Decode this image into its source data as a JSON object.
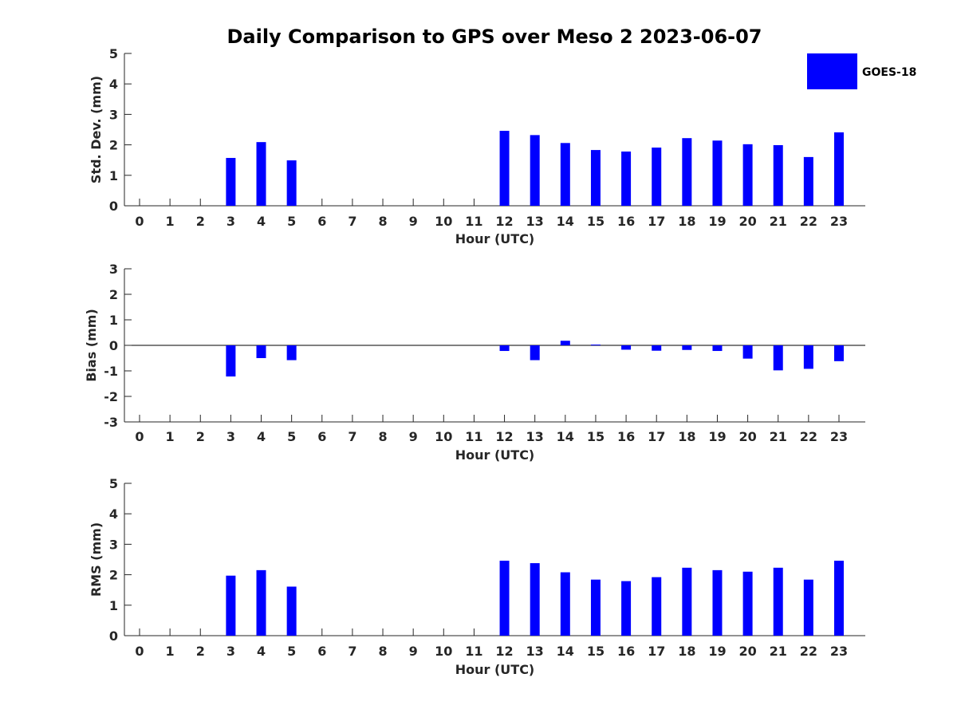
{
  "title": "Daily Comparison to GPS over Meso 2 2023-06-07",
  "colors": {
    "bar": "#0000ff",
    "axis": "#262626",
    "zero_line": "#000000"
  },
  "legend": {
    "label": "GOES-18",
    "position": "top-right"
  },
  "chart_data": [
    {
      "type": "bar",
      "id": "std",
      "title": "Daily Comparison to GPS over Meso 2 2023-06-07",
      "xlabel": "Hour (UTC)",
      "ylabel": "Std. Dev. (mm)",
      "ylim": [
        0,
        5
      ],
      "yticks": [
        "0",
        "1",
        "2",
        "3",
        "4",
        "5"
      ],
      "categories": [
        "0",
        "1",
        "2",
        "3",
        "4",
        "5",
        "6",
        "7",
        "8",
        "9",
        "10",
        "11",
        "12",
        "13",
        "14",
        "15",
        "16",
        "17",
        "18",
        "19",
        "20",
        "21",
        "22",
        "23"
      ],
      "series": [
        {
          "name": "GOES-18",
          "values": [
            null,
            null,
            null,
            1.57,
            2.09,
            1.49,
            null,
            null,
            null,
            null,
            null,
            null,
            2.46,
            2.32,
            2.06,
            1.83,
            1.78,
            1.91,
            2.22,
            2.14,
            2.02,
            1.99,
            1.6,
            2.41
          ]
        }
      ]
    },
    {
      "type": "bar",
      "id": "bias",
      "xlabel": "Hour (UTC)",
      "ylabel": "Bias (mm)",
      "ylim": [
        -3,
        3
      ],
      "yticks": [
        "-3",
        "-2",
        "-1",
        "0",
        "1",
        "2",
        "3"
      ],
      "categories": [
        "0",
        "1",
        "2",
        "3",
        "4",
        "5",
        "6",
        "7",
        "8",
        "9",
        "10",
        "11",
        "12",
        "13",
        "14",
        "15",
        "16",
        "17",
        "18",
        "19",
        "20",
        "21",
        "22",
        "23"
      ],
      "series": [
        {
          "name": "GOES-18",
          "values": [
            null,
            null,
            null,
            -1.22,
            -0.5,
            -0.58,
            null,
            null,
            null,
            null,
            null,
            null,
            -0.22,
            -0.58,
            0.18,
            0.03,
            -0.17,
            -0.21,
            -0.18,
            -0.22,
            -0.52,
            -0.98,
            -0.92,
            -0.62
          ]
        }
      ]
    },
    {
      "type": "bar",
      "id": "rms",
      "xlabel": "Hour (UTC)",
      "ylabel": "RMS (mm)",
      "ylim": [
        0,
        5
      ],
      "yticks": [
        "0",
        "1",
        "2",
        "3",
        "4",
        "5"
      ],
      "categories": [
        "0",
        "1",
        "2",
        "3",
        "4",
        "5",
        "6",
        "7",
        "8",
        "9",
        "10",
        "11",
        "12",
        "13",
        "14",
        "15",
        "16",
        "17",
        "18",
        "19",
        "20",
        "21",
        "22",
        "23"
      ],
      "series": [
        {
          "name": "GOES-18",
          "values": [
            null,
            null,
            null,
            1.97,
            2.15,
            1.61,
            null,
            null,
            null,
            null,
            null,
            null,
            2.46,
            2.38,
            2.08,
            1.84,
            1.79,
            1.92,
            2.23,
            2.15,
            2.1,
            2.23,
            1.84,
            2.46
          ]
        }
      ]
    }
  ]
}
